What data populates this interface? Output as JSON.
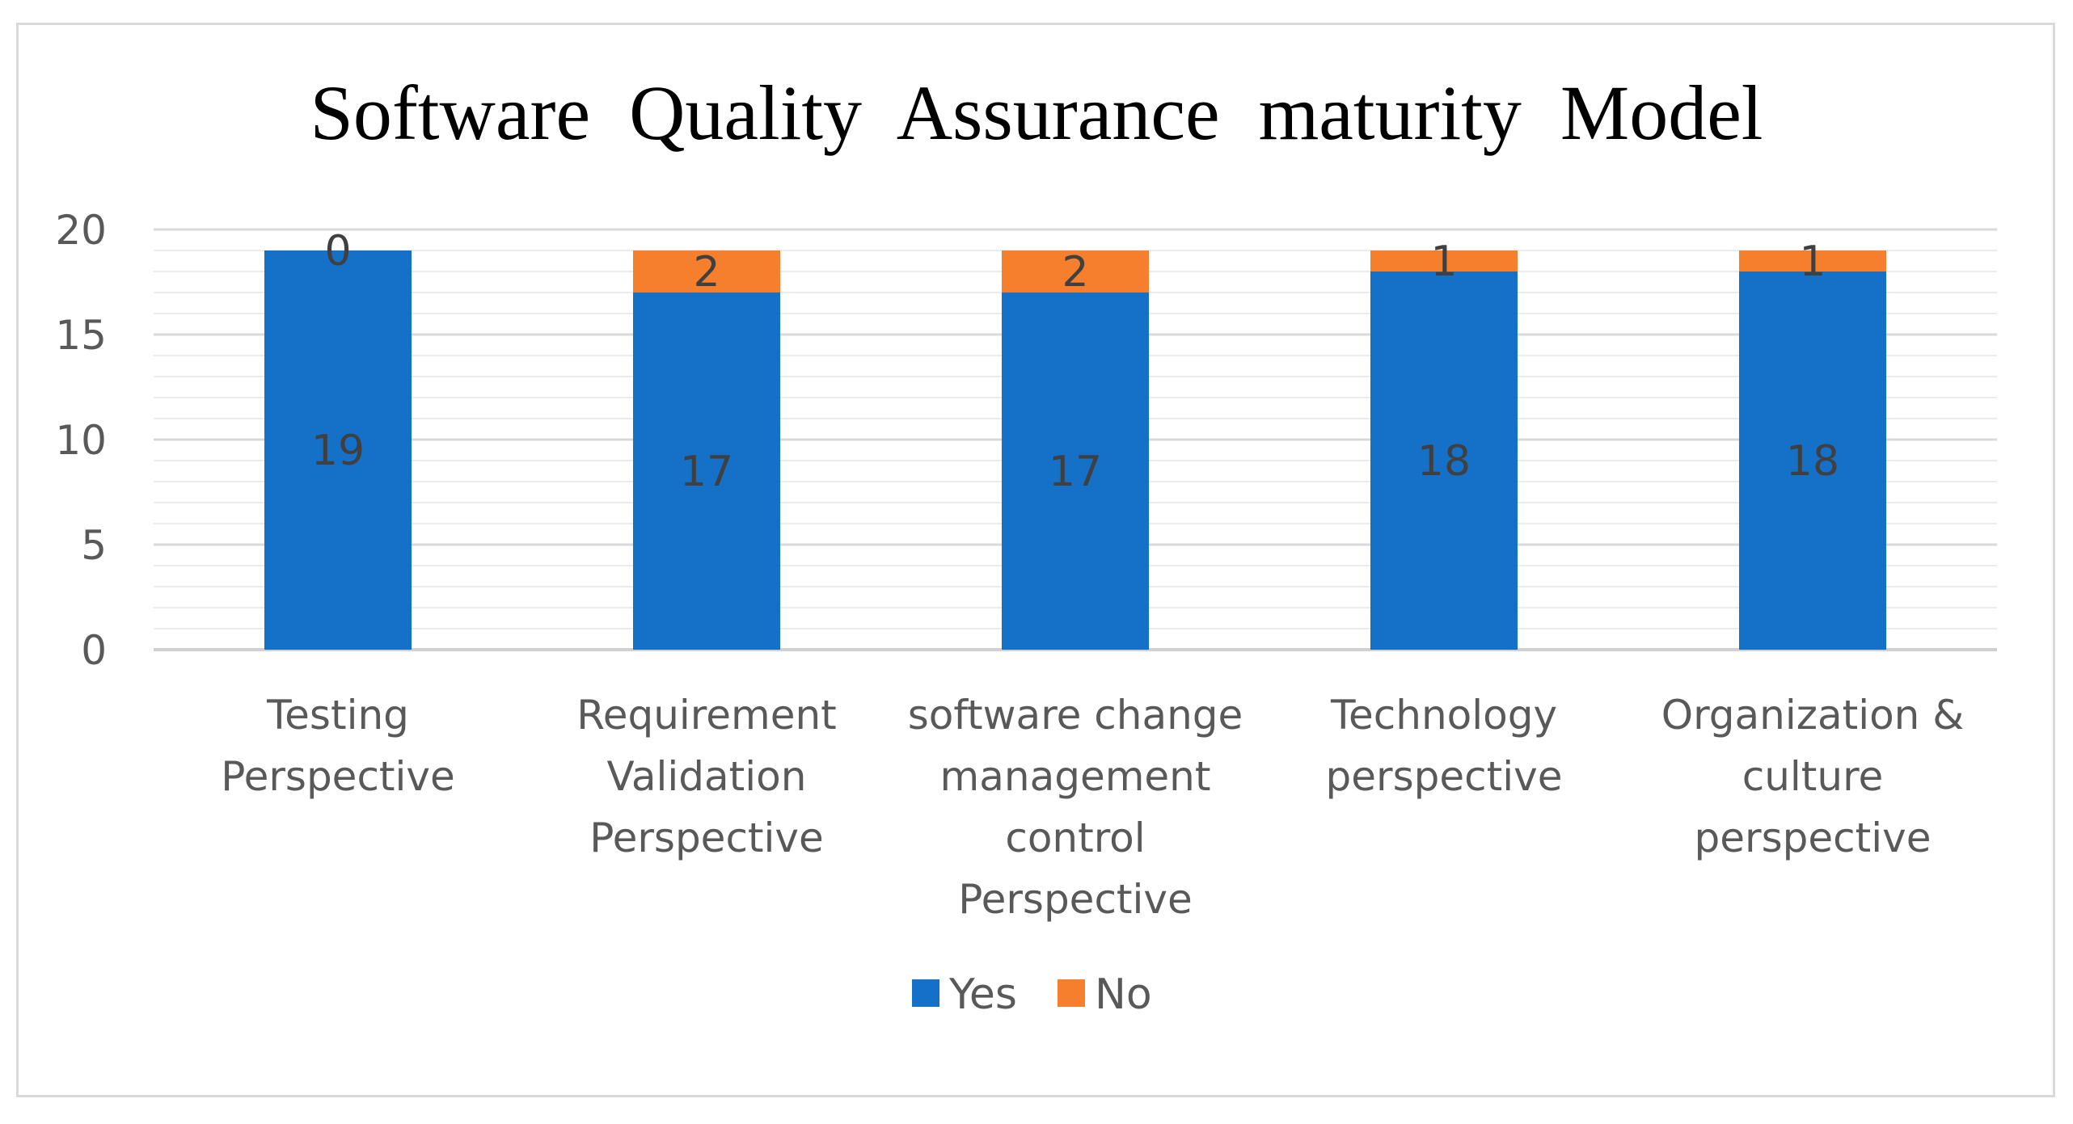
{
  "chart_data": {
    "type": "bar",
    "stacked": true,
    "title": "Software  Quality  Assurance  maturity  Model",
    "categories": [
      [
        "Testing",
        "Perspective"
      ],
      [
        "Requirement",
        "Validation",
        "Perspective"
      ],
      [
        "software change",
        "management",
        "control",
        "Perspective"
      ],
      [
        "Technology",
        "perspective"
      ],
      [
        "Organization &",
        "culture",
        "perspective"
      ]
    ],
    "series": [
      {
        "name": "Yes",
        "color": "#1570c8",
        "values": [
          19,
          17,
          17,
          18,
          18
        ]
      },
      {
        "name": "No",
        "color": "#f57f2c",
        "values": [
          0,
          2,
          2,
          1,
          1
        ]
      }
    ],
    "ylim": [
      0,
      20
    ],
    "yticks": [
      "0",
      "5",
      "10",
      "15",
      "20"
    ],
    "minor_grid_step": 1,
    "xlabel": "",
    "ylabel": "",
    "legend": "bottom"
  }
}
